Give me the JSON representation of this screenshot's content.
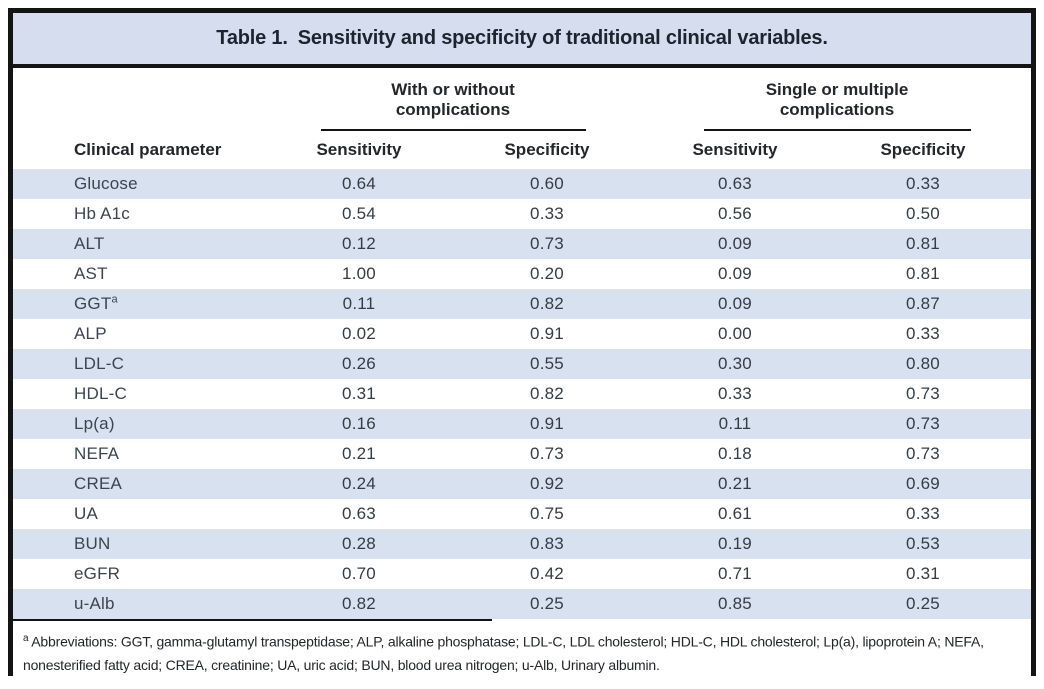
{
  "table": {
    "title_bold": "Table 1.",
    "title_rest": "Sensitivity and specificity of traditional clinical variables.",
    "groups": [
      {
        "line1": "With or without",
        "line2": "complications"
      },
      {
        "line1": "Single or multiple",
        "line2": "complications"
      }
    ],
    "col_header": "Clinical parameter",
    "sub_headers": [
      "Sensitivity",
      "Specificity",
      "Sensitivity",
      "Specificity"
    ],
    "rows": [
      {
        "label": "Glucose",
        "values": [
          "0.64",
          "0.60",
          "0.63",
          "0.33"
        ]
      },
      {
        "label": "Hb A1c",
        "values": [
          "0.54",
          "0.33",
          "0.56",
          "0.50"
        ]
      },
      {
        "label": "ALT",
        "values": [
          "0.12",
          "0.73",
          "0.09",
          "0.81"
        ]
      },
      {
        "label": "AST",
        "values": [
          "1.00",
          "0.20",
          "0.09",
          "0.81"
        ]
      },
      {
        "label": "GGT",
        "label_sup": "a",
        "values": [
          "0.11",
          "0.82",
          "0.09",
          "0.87"
        ]
      },
      {
        "label": "ALP",
        "values": [
          "0.02",
          "0.91",
          "0.00",
          "0.33"
        ]
      },
      {
        "label": "LDL-C",
        "values": [
          "0.26",
          "0.55",
          "0.30",
          "0.80"
        ]
      },
      {
        "label": "HDL-C",
        "values": [
          "0.31",
          "0.82",
          "0.33",
          "0.73"
        ]
      },
      {
        "label": "Lp(a)",
        "values": [
          "0.16",
          "0.91",
          "0.11",
          "0.73"
        ]
      },
      {
        "label": "NEFA",
        "values": [
          "0.21",
          "0.73",
          "0.18",
          "0.73"
        ]
      },
      {
        "label": "CREA",
        "values": [
          "0.24",
          "0.92",
          "0.21",
          "0.69"
        ]
      },
      {
        "label": "UA",
        "values": [
          "0.63",
          "0.75",
          "0.61",
          "0.33"
        ]
      },
      {
        "label": "BUN",
        "values": [
          "0.28",
          "0.83",
          "0.19",
          "0.53"
        ]
      },
      {
        "label": "eGFR",
        "values": [
          "0.70",
          "0.42",
          "0.71",
          "0.31"
        ]
      },
      {
        "label": "u-Alb",
        "values": [
          "0.82",
          "0.25",
          "0.85",
          "0.25"
        ]
      }
    ],
    "footnote_marker": "a",
    "footnote_text": "Abbreviations: GGT, gamma-glutamyl transpeptidase; ALP, alkaline phosphatase; LDL-C, LDL cholesterol; HDL-C, HDL cholesterol; Lp(a), lipoprotein A; NEFA, nonesterified fatty acid; CREA, creatinine; UA, uric acid; BUN, blood urea nitrogen; u-Alb, Urinary albumin."
  },
  "colors": {
    "title_bar_bg": "#d6ddee",
    "stripe_bg": "#d8e1f0",
    "frame_border": "#141414",
    "body_text": "#3c454e",
    "header_text": "#23262a"
  }
}
